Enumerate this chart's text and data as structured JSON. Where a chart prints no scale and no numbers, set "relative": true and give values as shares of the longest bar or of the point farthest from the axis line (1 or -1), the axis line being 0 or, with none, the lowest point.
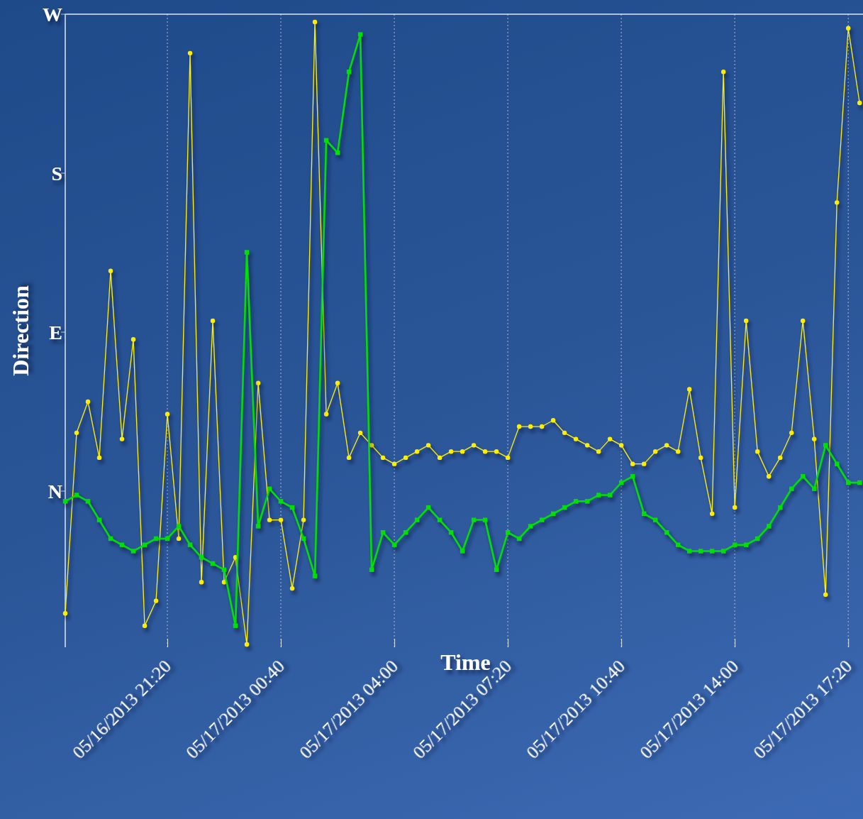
{
  "chart_data": {
    "type": "line",
    "xlabel": "Time",
    "ylabel": "Direction",
    "relative": true,
    "annotations": [
      "N",
      "E",
      "S",
      "W"
    ],
    "x": [
      "2013-05-16T18:20",
      "2013-05-16T18:40",
      "2013-05-16T19:00",
      "2013-05-16T19:20",
      "2013-05-16T19:40",
      "2013-05-16T20:00",
      "2013-05-16T20:20",
      "2013-05-16T20:40",
      "2013-05-16T21:00",
      "2013-05-16T21:20",
      "2013-05-16T21:40",
      "2013-05-16T22:00",
      "2013-05-16T22:20",
      "2013-05-16T22:40",
      "2013-05-16T23:00",
      "2013-05-16T23:20",
      "2013-05-16T23:40",
      "2013-05-17T00:00",
      "2013-05-17T00:20",
      "2013-05-17T00:40",
      "2013-05-17T01:00",
      "2013-05-17T01:20",
      "2013-05-17T01:40",
      "2013-05-17T02:00",
      "2013-05-17T02:20",
      "2013-05-17T02:40",
      "2013-05-17T03:00",
      "2013-05-17T03:20",
      "2013-05-17T03:40",
      "2013-05-17T04:00",
      "2013-05-17T04:20",
      "2013-05-17T04:40",
      "2013-05-17T05:00",
      "2013-05-17T05:20",
      "2013-05-17T05:40",
      "2013-05-17T06:00",
      "2013-05-17T06:20",
      "2013-05-17T06:40",
      "2013-05-17T07:00",
      "2013-05-17T07:20",
      "2013-05-17T07:40",
      "2013-05-17T08:00",
      "2013-05-17T08:20",
      "2013-05-17T08:40",
      "2013-05-17T09:00",
      "2013-05-17T09:20",
      "2013-05-17T09:40",
      "2013-05-17T10:00",
      "2013-05-17T10:20",
      "2013-05-17T10:40",
      "2013-05-17T11:00",
      "2013-05-17T11:20",
      "2013-05-17T11:40",
      "2013-05-17T12:00",
      "2013-05-17T12:20",
      "2013-05-17T12:40",
      "2013-05-17T13:00",
      "2013-05-17T13:20",
      "2013-05-17T13:40",
      "2013-05-17T14:00",
      "2013-05-17T14:20",
      "2013-05-17T14:40",
      "2013-05-17T15:00",
      "2013-05-17T15:20",
      "2013-05-17T15:40",
      "2013-05-17T16:00",
      "2013-05-17T16:20",
      "2013-05-17T16:40",
      "2013-05-17T17:00",
      "2013-05-17T17:20",
      "2013-05-17T17:40"
    ],
    "series": [
      {
        "color": "#ffee00",
        "marker": "circle",
        "values": [
          0.05,
          0.34,
          0.39,
          0.3,
          0.6,
          0.33,
          0.49,
          0.03,
          0.07,
          0.37,
          0.17,
          0.95,
          0.1,
          0.52,
          0.1,
          0.14,
          0,
          0.42,
          0.2,
          0.2,
          0.09,
          0.2,
          1,
          0.37,
          0.42,
          0.3,
          0.34,
          0.32,
          0.3,
          0.29,
          0.3,
          0.31,
          0.32,
          0.3,
          0.31,
          0.31,
          0.32,
          0.31,
          0.31,
          0.3,
          0.35,
          0.35,
          0.35,
          0.36,
          0.34,
          0.33,
          0.32,
          0.31,
          0.33,
          0.32,
          0.29,
          0.29,
          0.31,
          0.32,
          0.31,
          0.41,
          0.3,
          0.21,
          0.92,
          0.22,
          0.52,
          0.31,
          0.27,
          0.3,
          0.34,
          0.52,
          0.33,
          0.08,
          0.71,
          0.99,
          0.87
        ]
      },
      {
        "color": "#00e000",
        "marker": "square",
        "values": [
          0.23,
          0.24,
          0.23,
          0.2,
          0.17,
          0.16,
          0.15,
          0.16,
          0.17,
          0.17,
          0.19,
          0.16,
          0.14,
          0.13,
          0.12,
          0.03,
          0.63,
          0.19,
          0.25,
          0.23,
          0.22,
          0.17,
          0.11,
          0.81,
          0.79,
          0.92,
          0.98,
          0.12,
          0.18,
          0.16,
          0.18,
          0.2,
          0.22,
          0.2,
          0.18,
          0.15,
          0.2,
          0.2,
          0.12,
          0.18,
          0.17,
          0.19,
          0.2,
          0.21,
          0.22,
          0.23,
          0.23,
          0.24,
          0.24,
          0.26,
          0.27,
          0.21,
          0.2,
          0.18,
          0.16,
          0.15,
          0.15,
          0.15,
          0.15,
          0.16,
          0.16,
          0.17,
          0.19,
          0.22,
          0.25,
          0.27,
          0.25,
          0.32,
          0.29,
          0.26,
          0.26
        ]
      }
    ],
    "xlim": [
      "2013-05-16T18:20",
      "2013-05-17T17:46"
    ],
    "xticks": [
      {
        "value": "2013-05-16T21:20",
        "label": "05/16/2013 21:20"
      },
      {
        "value": "2013-05-17T00:40",
        "label": "05/17/2013 00:40"
      },
      {
        "value": "2013-05-17T04:00",
        "label": "05/17/2013 04:00"
      },
      {
        "value": "2013-05-17T07:20",
        "label": "05/17/2013 07:20"
      },
      {
        "value": "2013-05-17T10:40",
        "label": "05/17/2013 10:40"
      },
      {
        "value": "2013-05-17T14:00",
        "label": "05/17/2013 14:00"
      },
      {
        "value": "2013-05-17T17:20",
        "label": "05/17/2013 17:20"
      }
    ],
    "grid": "x"
  }
}
